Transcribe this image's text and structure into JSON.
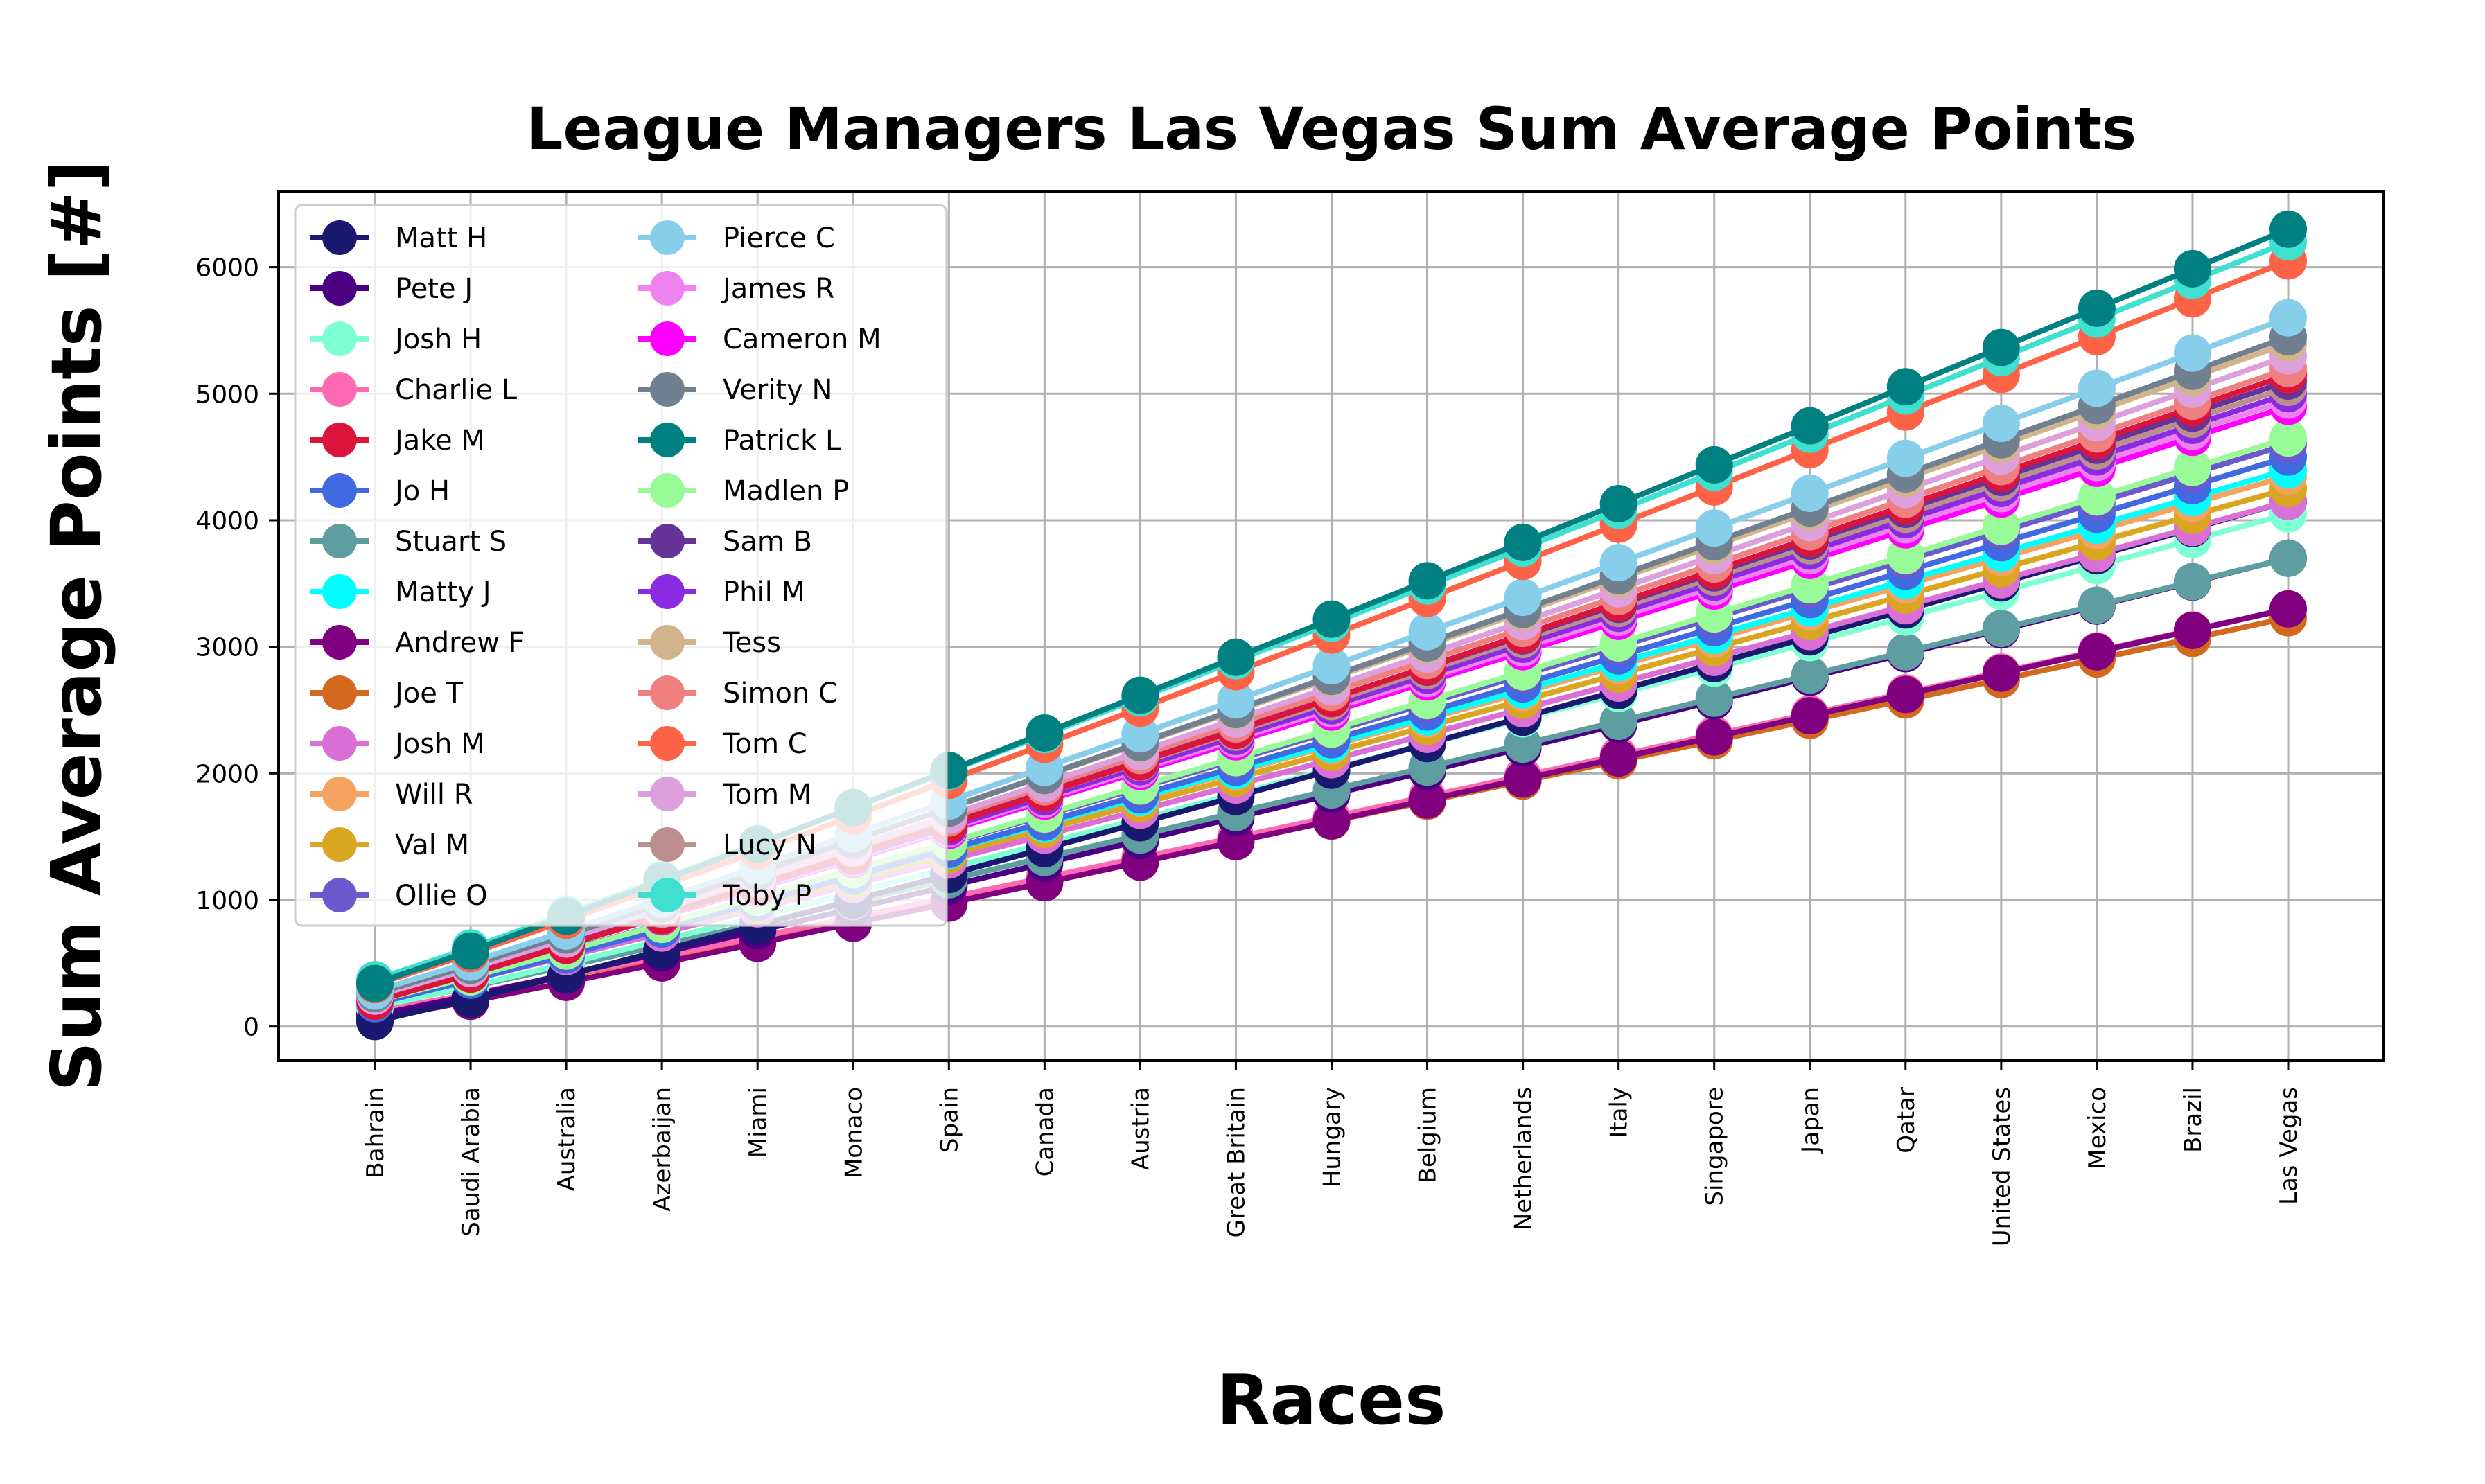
{
  "chart_data": {
    "type": "line",
    "title": "League Managers Las Vegas Sum Average Points",
    "xlabel": "Races",
    "ylabel": "Sum Average Points [#]",
    "categories": [
      "Bahrain",
      "Saudi Arabia",
      "Australia",
      "Azerbaijan",
      "Miami",
      "Monaco",
      "Spain",
      "Canada",
      "Austria",
      "Great Britain",
      "Hungary",
      "Belgium",
      "Netherlands",
      "Italy",
      "Singapore",
      "Japan",
      "Qatar",
      "United States",
      "Mexico",
      "Brazil",
      "Las Vegas"
    ],
    "ylim": [
      -270,
      6600
    ],
    "yticks": [
      0,
      1000,
      2000,
      3000,
      4000,
      5000,
      6000
    ],
    "grid": true,
    "legend_position": "top-left",
    "legend_columns": 2,
    "series": [
      {
        "name": "Matt H",
        "color": "#191970",
        "start": 40,
        "end": 4150
      },
      {
        "name": "Pete J",
        "color": "#4B0082",
        "start": 90,
        "end": 3700
      },
      {
        "name": "Josh H",
        "color": "#7FFFD4",
        "start": 150,
        "end": 4050
      },
      {
        "name": "Charlie L",
        "color": "#FF69B4",
        "start": 120,
        "end": 3300
      },
      {
        "name": "Jake M",
        "color": "#DC143C",
        "start": 200,
        "end": 5150
      },
      {
        "name": "Jo H",
        "color": "#4169E1",
        "start": 180,
        "end": 4500
      },
      {
        "name": "Stuart S",
        "color": "#5F9EA0",
        "start": 160,
        "end": 3700
      },
      {
        "name": "Matty J",
        "color": "#00FFFF",
        "start": 210,
        "end": 4400
      },
      {
        "name": "Andrew F",
        "color": "#800080",
        "start": 60,
        "end": 3300
      },
      {
        "name": "Joe T",
        "color": "#D2691E",
        "start": 120,
        "end": 3230
      },
      {
        "name": "Josh M",
        "color": "#DA70D6",
        "start": 200,
        "end": 4150
      },
      {
        "name": "Will R",
        "color": "#F4A460",
        "start": 230,
        "end": 4350
      },
      {
        "name": "Val M",
        "color": "#DAA520",
        "start": 220,
        "end": 4250
      },
      {
        "name": "Ollie O",
        "color": "#6A5ACD",
        "start": 210,
        "end": 4600
      },
      {
        "name": "Pierce C",
        "color": "#87CEEB",
        "start": 280,
        "end": 5600
      },
      {
        "name": "James R",
        "color": "#EE82EE",
        "start": 230,
        "end": 4950
      },
      {
        "name": "Cameron M",
        "color": "#FF00FF",
        "start": 230,
        "end": 4900
      },
      {
        "name": "Verity N",
        "color": "#708090",
        "start": 260,
        "end": 5450
      },
      {
        "name": "Patrick L",
        "color": "#008080",
        "start": 340,
        "end": 6300
      },
      {
        "name": "Madlen P",
        "color": "#98FB98",
        "start": 200,
        "end": 4650
      },
      {
        "name": "Sam B",
        "color": "#663399",
        "start": 250,
        "end": 5100
      },
      {
        "name": "Phil M",
        "color": "#8A2BE2",
        "start": 230,
        "end": 5000
      },
      {
        "name": "Tess",
        "color": "#D2B48C",
        "start": 280,
        "end": 5400
      },
      {
        "name": "Simon C",
        "color": "#F08080",
        "start": 250,
        "end": 5200
      },
      {
        "name": "Tom C",
        "color": "#FF6347",
        "start": 330,
        "end": 6050
      },
      {
        "name": "Tom M",
        "color": "#DDA0DD",
        "start": 240,
        "end": 5300
      },
      {
        "name": "Lucy N",
        "color": "#BC8F8F",
        "start": 250,
        "end": 5050
      },
      {
        "name": "Toby P",
        "color": "#40E0D0",
        "start": 370,
        "end": 6200
      }
    ]
  }
}
